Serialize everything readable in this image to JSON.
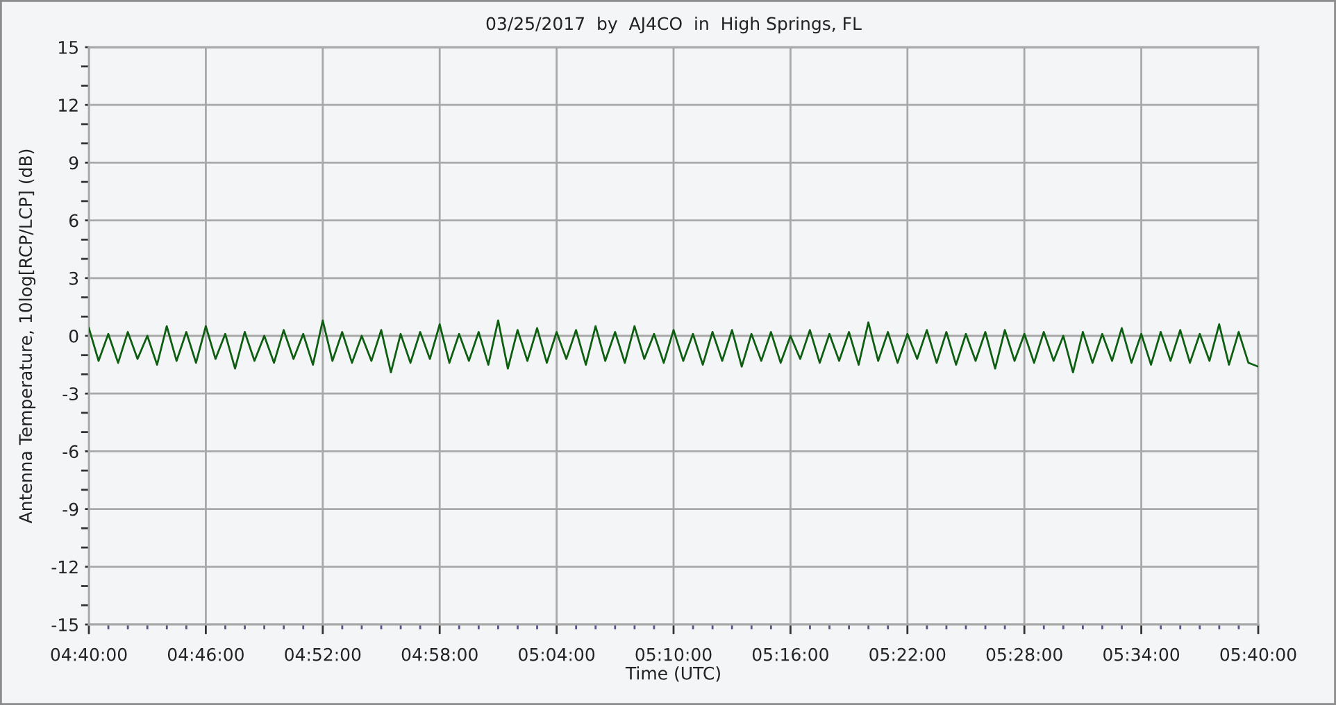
{
  "chart_data": {
    "type": "line",
    "title": "03/25/2017  by  AJ4CO  in  High Springs, FL",
    "xlabel": "Time (UTC)",
    "ylabel": "Antenna Temperature, 10log[RCP/LCP] (dB)",
    "x": [
      4.6667,
      4.675,
      4.6833,
      4.6917,
      4.7,
      4.7083,
      4.7167,
      4.725,
      4.7333,
      4.7417,
      4.75,
      4.7583,
      4.7667,
      4.775,
      4.7833,
      4.7917,
      4.8,
      4.8083,
      4.8167,
      4.825,
      4.8333,
      4.8417,
      4.85,
      4.8583,
      4.8667,
      4.875,
      4.8833,
      4.8917,
      4.9,
      4.9083,
      4.9167,
      4.925,
      4.9333,
      4.9417,
      4.95,
      4.9583,
      4.9667,
      4.975,
      4.9833,
      4.9917,
      5.0,
      5.0083,
      5.0167,
      5.025,
      5.0333,
      5.0417,
      5.05,
      5.0583,
      5.0667,
      5.075,
      5.0833,
      5.0917,
      5.1,
      5.1083,
      5.1167,
      5.125,
      5.1333,
      5.1417,
      5.15,
      5.1583,
      5.1667,
      5.175,
      5.1833,
      5.1917,
      5.2,
      5.2083,
      5.2167,
      5.225,
      5.2333,
      5.2417,
      5.25,
      5.2583,
      5.2667,
      5.275,
      5.2833,
      5.2917,
      5.3,
      5.3083,
      5.3167,
      5.325,
      5.3333,
      5.3417,
      5.35,
      5.3583,
      5.3667,
      5.375,
      5.3833,
      5.3917,
      5.4,
      5.4083,
      5.4167,
      5.425,
      5.4333,
      5.4417,
      5.45,
      5.4583,
      5.4667,
      5.475,
      5.4833,
      5.4917,
      5.5,
      5.5083,
      5.5167,
      5.525,
      5.5333,
      5.5417,
      5.55,
      5.5583,
      5.5667,
      5.575,
      5.5833,
      5.5917,
      5.6,
      5.6083,
      5.6167,
      5.625,
      5.6333,
      5.6417,
      5.65,
      5.6583,
      5.6667
    ],
    "values": [
      0.4,
      -1.3,
      0.1,
      -1.4,
      0.2,
      -1.2,
      0.0,
      -1.5,
      0.5,
      -1.3,
      0.2,
      -1.4,
      0.5,
      -1.2,
      0.1,
      -1.7,
      0.2,
      -1.3,
      0.0,
      -1.4,
      0.3,
      -1.2,
      0.1,
      -1.5,
      0.8,
      -1.3,
      0.2,
      -1.4,
      0.0,
      -1.3,
      0.3,
      -1.9,
      0.1,
      -1.4,
      0.2,
      -1.2,
      0.6,
      -1.4,
      0.1,
      -1.3,
      0.2,
      -1.5,
      0.8,
      -1.7,
      0.3,
      -1.3,
      0.4,
      -1.4,
      0.2,
      -1.2,
      0.3,
      -1.5,
      0.5,
      -1.3,
      0.2,
      -1.4,
      0.5,
      -1.2,
      0.1,
      -1.4,
      0.3,
      -1.3,
      0.1,
      -1.5,
      0.2,
      -1.3,
      0.3,
      -1.6,
      0.1,
      -1.3,
      0.2,
      -1.4,
      0.0,
      -1.2,
      0.3,
      -1.4,
      0.1,
      -1.3,
      0.2,
      -1.5,
      0.7,
      -1.3,
      0.2,
      -1.4,
      0.1,
      -1.2,
      0.3,
      -1.4,
      0.2,
      -1.5,
      0.1,
      -1.3,
      0.2,
      -1.7,
      0.3,
      -1.3,
      0.1,
      -1.4,
      0.2,
      -1.3,
      0.0,
      -1.9,
      0.2,
      -1.4,
      0.1,
      -1.3,
      0.4,
      -1.4,
      0.1,
      -1.5,
      0.2,
      -1.3,
      0.3,
      -1.4,
      0.1,
      -1.3,
      0.6,
      -1.5,
      0.2,
      -1.4,
      -1.6
    ],
    "color": "#0d5e10",
    "xlim": [
      4.6667,
      5.6667
    ],
    "xticks": [
      {
        "value": 4.6667,
        "label": "04:40:00"
      },
      {
        "value": 4.7667,
        "label": "04:46:00"
      },
      {
        "value": 4.8667,
        "label": "04:52:00"
      },
      {
        "value": 4.9667,
        "label": "04:58:00"
      },
      {
        "value": 5.0667,
        "label": "05:04:00"
      },
      {
        "value": 5.1667,
        "label": "05:10:00"
      },
      {
        "value": 5.2667,
        "label": "05:16:00"
      },
      {
        "value": 5.3667,
        "label": "05:22:00"
      },
      {
        "value": 5.4667,
        "label": "05:28:00"
      },
      {
        "value": 5.5667,
        "label": "05:34:00"
      },
      {
        "value": 5.6667,
        "label": "05:40:00"
      }
    ],
    "ylim": [
      -15,
      15
    ],
    "yticks": [
      -15,
      -12,
      -9,
      -6,
      -3,
      0,
      3,
      6,
      9,
      12,
      15
    ],
    "grid": true
  }
}
